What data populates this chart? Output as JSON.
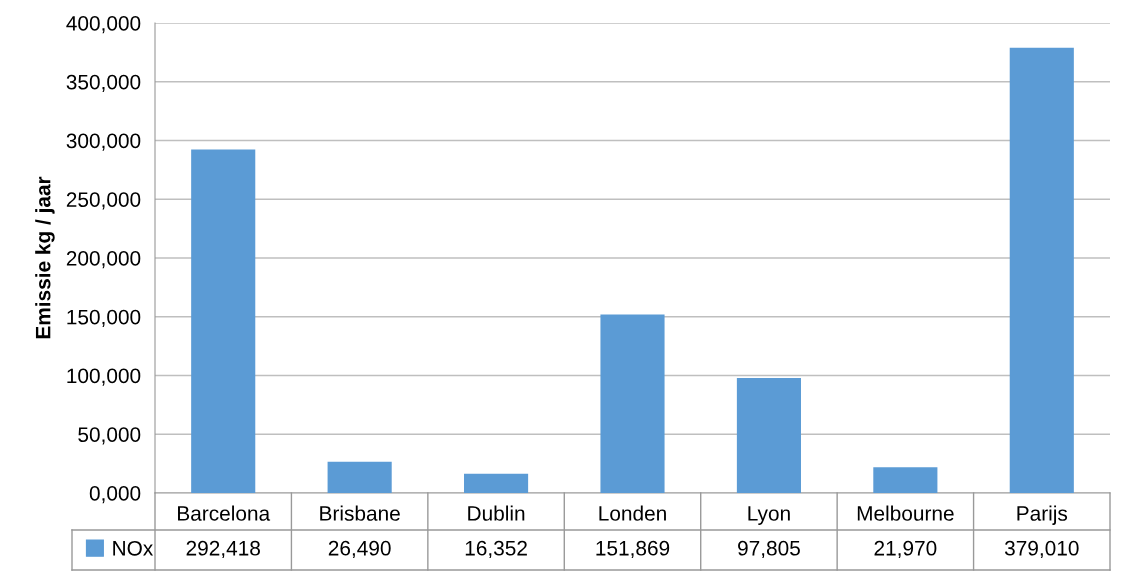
{
  "chart_data": {
    "type": "bar",
    "ylabel": "Emissie kg / jaar",
    "categories": [
      "Barcelona",
      "Brisbane",
      "Dublin",
      "Londen",
      "Lyon",
      "Melbourne",
      "Parijs"
    ],
    "series": [
      {
        "name": "NOx",
        "color": "#5b9bd5",
        "values": [
          292418,
          26490,
          16352,
          151869,
          97805,
          21970,
          379010
        ],
        "value_labels": [
          "292,418",
          "26,490",
          "16,352",
          "151,869",
          "97,805",
          "21,970",
          "379,010"
        ]
      }
    ],
    "ylim": [
      0,
      400000
    ],
    "yticks": [
      {
        "value": 0,
        "label": "0,000"
      },
      {
        "value": 50000,
        "label": "50,000"
      },
      {
        "value": 100000,
        "label": "100,000"
      },
      {
        "value": 150000,
        "label": "150,000"
      },
      {
        "value": 200000,
        "label": "200,000"
      },
      {
        "value": 250000,
        "label": "250,000"
      },
      {
        "value": 300000,
        "label": "300,000"
      },
      {
        "value": 350000,
        "label": "350,000"
      },
      {
        "value": 400000,
        "label": "400,000"
      }
    ],
    "grid": "y",
    "legend": "bottom"
  }
}
